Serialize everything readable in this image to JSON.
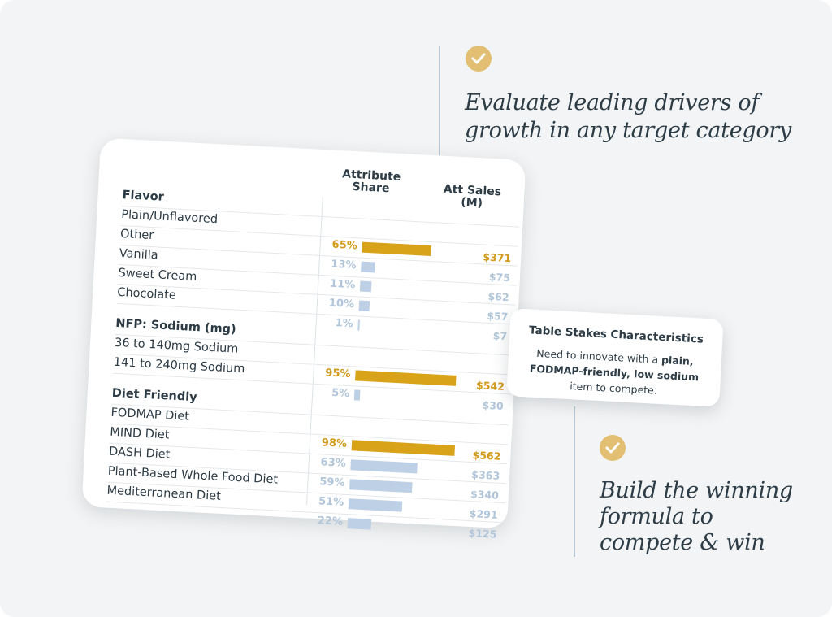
{
  "headlines": {
    "top": [
      "Evaluate leading drivers of",
      "growth in any target category"
    ],
    "bottom": [
      "Build the winning",
      "formula to",
      "compete & win"
    ]
  },
  "colors": {
    "gold": "#d8a219",
    "light_blue": "#bdd0e5",
    "check_circle": "#e2bf73",
    "text_dark": "#2e3c46"
  },
  "icons": [
    "check-icon",
    "check-icon"
  ],
  "table": {
    "headers": {
      "share": [
        "Attribute",
        "Share"
      ],
      "sales": [
        "Att Sales",
        "(M)"
      ]
    },
    "sections": [
      {
        "title": "Flavor",
        "rows": [
          {
            "label": "Plain/Unflavored",
            "share": "65%",
            "share_value": 65,
            "sales": "$371",
            "highlight": true
          },
          {
            "label": "Other",
            "share": "13%",
            "share_value": 13,
            "sales": "$75",
            "highlight": false
          },
          {
            "label": "Vanilla",
            "share": "11%",
            "share_value": 11,
            "sales": "$62",
            "highlight": false
          },
          {
            "label": "Sweet Cream",
            "share": "10%",
            "share_value": 10,
            "sales": "$57",
            "highlight": false
          },
          {
            "label": "Chocolate",
            "share": "1%",
            "share_value": 1,
            "sales": "$7",
            "highlight": false
          }
        ]
      },
      {
        "title": "NFP: Sodium (mg)",
        "rows": [
          {
            "label": "36 to 140mg Sodium",
            "share": "95%",
            "share_value": 95,
            "sales": "$542",
            "highlight": true
          },
          {
            "label": "141 to 240mg Sodium",
            "share": "5%",
            "share_value": 5,
            "sales": "$30",
            "highlight": false
          }
        ]
      },
      {
        "title": "Diet Friendly",
        "rows": [
          {
            "label": "FODMAP Diet",
            "share": "98%",
            "share_value": 98,
            "sales": "$562",
            "highlight": true
          },
          {
            "label": "MIND Diet",
            "share": "63%",
            "share_value": 63,
            "sales": "$363",
            "highlight": false
          },
          {
            "label": "DASH Diet",
            "share": "59%",
            "share_value": 59,
            "sales": "$340",
            "highlight": false
          },
          {
            "label": "Plant-Based Whole Food Diet",
            "share": "51%",
            "share_value": 51,
            "sales": "$291",
            "highlight": false
          },
          {
            "label": "Mediterranean Diet",
            "share": "22%",
            "share_value": 22,
            "sales": "$125",
            "highlight": false
          }
        ]
      }
    ]
  },
  "tooltip": {
    "title": "Table Stakes Characteristics",
    "text_1": "Need to innovate with a ",
    "bold_1": "plain, FODMAP-friendly, low sodium",
    "text_2": " item to compete."
  }
}
